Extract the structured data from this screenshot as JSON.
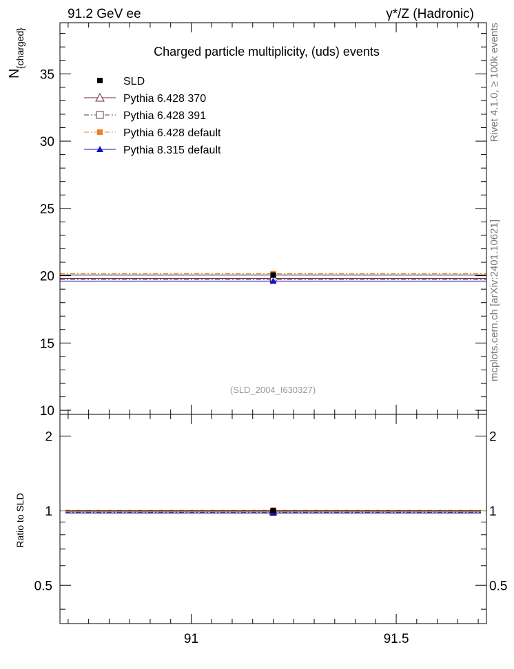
{
  "header": {
    "left": "91.2 GeV ee",
    "right": "γ*/Z (Hadronic)"
  },
  "side_labels": {
    "rivet": "Rivet 4.1.0, ≥ 100k events",
    "mcplots": "mcplots.cern.ch [arXiv:2401.10621]"
  },
  "chart_data": [
    {
      "type": "line",
      "panel": "main",
      "title": "Charged particle multiplicity, (uds) events",
      "ylabel": "N_{charged}",
      "ylabel_main": "N",
      "ylabel_sub": "{charged}",
      "xlabel": "",
      "xlim": [
        90.68,
        91.72
      ],
      "ylim": [
        9.7,
        38.8
      ],
      "yticks": [
        10,
        15,
        20,
        25,
        30,
        35
      ],
      "annotation": "(SLD_2004_I630327)",
      "legend_position": "top-left",
      "series": [
        {
          "name": "SLD",
          "x": [
            91.2
          ],
          "y": [
            20.05
          ],
          "xerr": [
            0.52
          ],
          "color": "#000000",
          "marker": "square",
          "line": "none"
        },
        {
          "name": "Pythia 6.428 370",
          "x": [
            91.2
          ],
          "y": [
            19.8
          ],
          "xerr": [
            0.52
          ],
          "color": "#7b1d3a",
          "marker": "triangle-open",
          "line": "solid"
        },
        {
          "name": "Pythia 6.428 391",
          "x": [
            91.2
          ],
          "y": [
            19.7
          ],
          "xerr": [
            0.52
          ],
          "color": "#5a3a4a",
          "marker": "square-open",
          "line": "dashdot"
        },
        {
          "name": "Pythia 6.428 default",
          "x": [
            91.2
          ],
          "y": [
            20.15
          ],
          "xerr": [
            0.52
          ],
          "color": "#f07f2b",
          "marker": "square",
          "line": "dashdot"
        },
        {
          "name": "Pythia 8.315 default",
          "x": [
            91.2
          ],
          "y": [
            19.6
          ],
          "xerr": [
            0.52
          ],
          "color": "#1010c8",
          "marker": "triangle",
          "line": "solid"
        }
      ]
    },
    {
      "type": "line",
      "panel": "ratio",
      "ylabel": "Ratio to SLD",
      "xlim": [
        90.68,
        91.72
      ],
      "ylim": [
        0.35,
        2.45
      ],
      "yscale": "log",
      "yticks": [
        0.5,
        1,
        2
      ],
      "ytick_labels": [
        "0.5",
        "1",
        "2"
      ],
      "xticks": [
        91,
        91.5
      ],
      "xtick_labels": [
        "91",
        "91.5"
      ],
      "series": [
        {
          "name": "SLD",
          "y": [
            1.0
          ],
          "color": "#000000"
        },
        {
          "name": "Pythia 6.428 370",
          "y": [
            0.988
          ],
          "color": "#7b1d3a"
        },
        {
          "name": "Pythia 6.428 391",
          "y": [
            0.983
          ],
          "color": "#5a3a4a"
        },
        {
          "name": "Pythia 6.428 default",
          "y": [
            1.005
          ],
          "color": "#f07f2b"
        },
        {
          "name": "Pythia 8.315 default",
          "y": [
            0.978
          ],
          "color": "#1010c8"
        }
      ]
    }
  ]
}
